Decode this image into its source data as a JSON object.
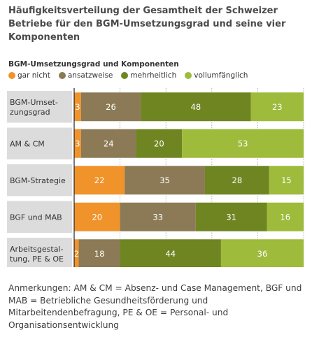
{
  "title": "Häufigkeitsverteilung der Gesamtheit der Schweizer Betriebe für den BGM-Umsetzungsgrad und seine vier Komponenten",
  "legend_title": "BGM-Umsetzungsgrad und Komponenten",
  "colors": {
    "gar nicht": "#f0932a",
    "ansatzweise": "#8b7a55",
    "mehrheitlich": "#6f8522",
    "vollumfänglich": "#9ebb3c",
    "row_label_bg": "#dcdcdc"
  },
  "note": "Anmerkungen: AM & CM = Absenz- und Case Management, BGF und MAB = Betriebliche Gesundheitsförderung und Mitarbeitendenbefragung, PE & OE = Personal- und Organisationsentwicklung",
  "chart_data": {
    "type": "bar",
    "orientation": "horizontal",
    "stacked": true,
    "categories": [
      "BGM-Umset-\nzungsgrad",
      "AM & CM",
      "BGM-Strategie",
      "BGF und MAB",
      "Arbeitsgestal-\ntung, PE & OE"
    ],
    "series": [
      {
        "name": "gar nicht",
        "values": [
          3,
          3,
          22,
          20,
          2
        ]
      },
      {
        "name": "ansatzweise",
        "values": [
          26,
          24,
          35,
          33,
          18
        ]
      },
      {
        "name": "mehrheitlich",
        "values": [
          48,
          20,
          28,
          31,
          44
        ]
      },
      {
        "name": "vollumfänglich",
        "values": [
          23,
          53,
          15,
          16,
          36
        ]
      }
    ],
    "xlim": [
      0,
      100
    ],
    "xticks": [
      "0%",
      "20%",
      "40%",
      "60%",
      "80%",
      "100%"
    ],
    "grid": true
  }
}
